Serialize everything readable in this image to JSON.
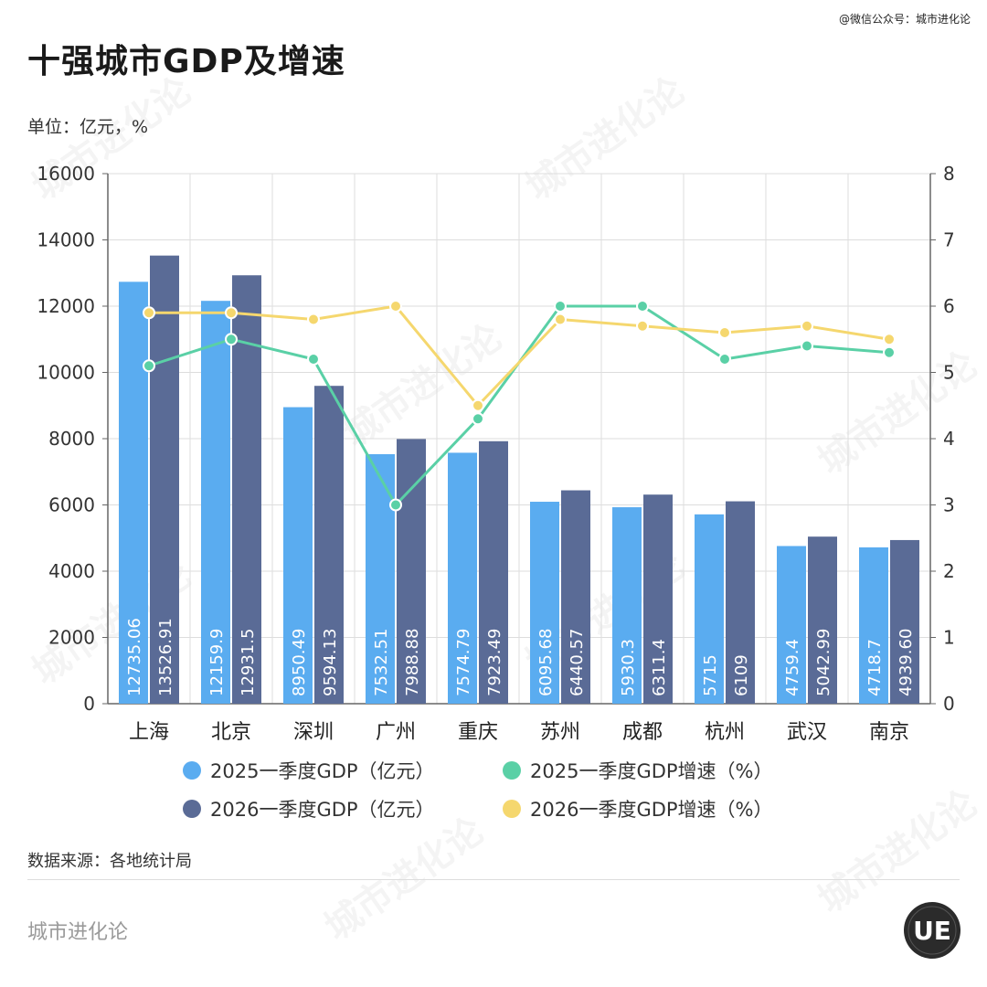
{
  "header": {
    "credit": "@微信公众号：城市进化论",
    "title": "十强城市GDP及增速",
    "unit": "单位：亿元，%"
  },
  "footer": {
    "source": "数据来源：各地统计局",
    "brand": "城市进化论",
    "logo_text": "UE",
    "watermark": "城市进化论"
  },
  "colors": {
    "bar2025": "#5aacf0",
    "bar2026": "#5a6b96",
    "line2025": "#5ad0a6",
    "line2026": "#f5d76e",
    "grid": "#dddddd",
    "axis": "#666666"
  },
  "chart_data": {
    "type": "bar",
    "categories": [
      "上海",
      "北京",
      "深圳",
      "广州",
      "重庆",
      "苏州",
      "成都",
      "杭州",
      "武汉",
      "南京"
    ],
    "series": [
      {
        "name": "2025一季度GDP（亿元）",
        "kind": "bar",
        "axis": "left",
        "values": [
          12735.06,
          12159.9,
          8950.49,
          7532.51,
          7574.79,
          6095.68,
          5930.3,
          5715,
          4759.4,
          4718.7
        ],
        "labels": [
          "12735.06",
          "12159.9",
          "8950.49",
          "7532.51",
          "7574.79",
          "6095.68",
          "5930.3",
          "5715",
          "4759.4",
          "4718.7"
        ]
      },
      {
        "name": "2026一季度GDP（亿元）",
        "kind": "bar",
        "axis": "left",
        "values": [
          13526.91,
          12931.5,
          9594.13,
          7988.88,
          7923.49,
          6440.57,
          6311.4,
          6109,
          5042.99,
          4939.6
        ],
        "labels": [
          "13526.91",
          "12931.5",
          "9594.13",
          "7988.88",
          "7923.49",
          "6440.57",
          "6311.4",
          "6109",
          "5042.99",
          "4939.60"
        ]
      },
      {
        "name": "2025一季度GDP增速（%）",
        "kind": "line",
        "axis": "right",
        "values": [
          5.1,
          5.5,
          5.2,
          3.0,
          4.3,
          6.0,
          6.0,
          5.2,
          5.4,
          5.3
        ]
      },
      {
        "name": "2026一季度GDP增速（%）",
        "kind": "line",
        "axis": "right",
        "values": [
          5.9,
          5.9,
          5.8,
          6.0,
          4.5,
          5.8,
          5.7,
          5.6,
          5.7,
          5.5
        ]
      }
    ],
    "y_left": {
      "min": 0,
      "max": 16000,
      "ticks": [
        "0",
        "2000",
        "4000",
        "6000",
        "8000",
        "10000",
        "12000",
        "14000",
        "16000"
      ]
    },
    "y_right": {
      "min": 0,
      "max": 8,
      "ticks": [
        "0",
        "1",
        "2",
        "3",
        "4",
        "5",
        "6",
        "7",
        "8"
      ]
    },
    "grid": true,
    "legend_placement": "bottom"
  }
}
